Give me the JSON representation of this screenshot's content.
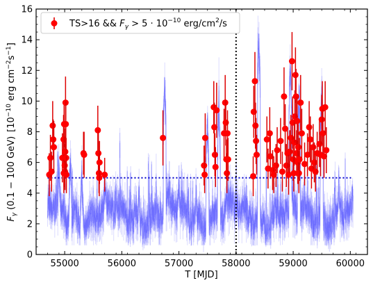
{
  "chart_data": {
    "type": "scatter",
    "xlabel": "T [MJD]",
    "ylabel": "F_γ (0.1 − 100 GeV) [10^{-10} erg cm^{-2}s^{-1}]",
    "ylabel_parts": {
      "main_left": "F",
      "main_sub": "γ",
      "main_range": " (0.1 − 100 GeV)",
      "unit_left": "[10",
      "unit_exp1": "−10",
      "unit_mid": " erg cm",
      "unit_exp2": "−2",
      "unit_s": "s",
      "unit_exp3": "−1",
      "unit_right": "]"
    },
    "xlim": [
      54500,
      60300
    ],
    "ylim": [
      0,
      16
    ],
    "xticks": [
      55000,
      56000,
      57000,
      58000,
      59000,
      60000
    ],
    "yticks": [
      0,
      2,
      4,
      6,
      8,
      10,
      12,
      14,
      16
    ],
    "grid": false,
    "legend": {
      "placement": "top-left",
      "entry": "TS>16 && F_γ > 5·10^{-10} erg/cm^2/s",
      "entry_parts": {
        "lead": "TS>16 && ",
        "f": "F",
        "f_sub": "γ",
        "gt": " > 5 · 10",
        "exp": "−10",
        "unit": " erg/cm",
        "unit_exp": "2",
        "unit_tail": "/s"
      }
    },
    "threshold": {
      "value": 5,
      "x_range": [
        54700,
        60050
      ],
      "color": "#0000cc",
      "style": "dotted"
    },
    "vertical_line": {
      "x": 58000,
      "color": "#000000",
      "style": "dotted"
    },
    "background_series": {
      "description_color": "#0000ff",
      "x_range": [
        54700,
        60050
      ],
      "typical_range": [
        1.5,
        4.5
      ],
      "peaks": [
        [
          54900,
          6.5
        ],
        [
          55100,
          7.2
        ],
        [
          55700,
          5.6
        ],
        [
          56750,
          12.0
        ],
        [
          57000,
          5.5
        ],
        [
          57500,
          9.5
        ],
        [
          57700,
          10.3
        ],
        [
          58400,
          14.5
        ],
        [
          58950,
          13.0
        ],
        [
          59100,
          10.7
        ],
        [
          59500,
          11.6
        ],
        [
          59800,
          5.8
        ],
        [
          55300,
          6.2
        ],
        [
          56300,
          5.2
        ],
        [
          57300,
          4.8
        ]
      ]
    },
    "series": [
      {
        "name": "TS>16 && F_γ > 5·10^{-10} erg/cm^2/s",
        "color": "#ff0000",
        "points": [
          [
            54730,
            5.2,
            1.4
          ],
          [
            54750,
            6.3,
            1.5
          ],
          [
            54770,
            5.4,
            1.3
          ],
          [
            54790,
            8.4,
            1.6
          ],
          [
            54800,
            7.5,
            1.3
          ],
          [
            54810,
            7.0,
            1.7
          ],
          [
            54960,
            6.3,
            1.6
          ],
          [
            54980,
            7.5,
            1.6
          ],
          [
            54985,
            5.3,
            1.3
          ],
          [
            54990,
            8.5,
            1.5
          ],
          [
            55000,
            5.8,
            1.4
          ],
          [
            55005,
            5.4,
            1.2
          ],
          [
            55010,
            6.7,
            1.5
          ],
          [
            55015,
            9.9,
            1.7
          ],
          [
            55020,
            8.5,
            1.5
          ],
          [
            55025,
            6.3,
            1.3
          ],
          [
            55030,
            5.2,
            1.2
          ],
          [
            55330,
            6.6,
            1.4
          ],
          [
            55340,
            6.5,
            1.5
          ],
          [
            55580,
            8.1,
            1.6
          ],
          [
            55590,
            6.6,
            1.5
          ],
          [
            55600,
            5.3,
            1.3
          ],
          [
            55605,
            5.0,
            1.2
          ],
          [
            55610,
            6.0,
            1.4
          ],
          [
            55700,
            5.2,
            1.1
          ],
          [
            56720,
            7.6,
            1.8
          ],
          [
            57440,
            5.8,
            1.3
          ],
          [
            57450,
            5.2,
            1.2
          ],
          [
            57460,
            7.6,
            1.6
          ],
          [
            57610,
            9.6,
            1.7
          ],
          [
            57620,
            8.3,
            1.6
          ],
          [
            57630,
            6.5,
            1.4
          ],
          [
            57640,
            5.7,
            1.3
          ],
          [
            57660,
            9.4,
            1.8
          ],
          [
            57790,
            7.9,
            1.6
          ],
          [
            57810,
            9.9,
            1.8
          ],
          [
            57820,
            8.6,
            1.5
          ],
          [
            57830,
            6.2,
            1.3
          ],
          [
            57840,
            5.3,
            1.3
          ],
          [
            57850,
            7.9,
            1.5
          ],
          [
            57860,
            6.2,
            1.4
          ],
          [
            58300,
            5.1,
            1.3
          ],
          [
            58310,
            9.3,
            1.7
          ],
          [
            58330,
            11.3,
            1.9
          ],
          [
            58340,
            8.4,
            1.5
          ],
          [
            58350,
            7.4,
            1.5
          ],
          [
            58360,
            6.5,
            1.3
          ],
          [
            58540,
            7.5,
            1.5
          ],
          [
            58560,
            5.6,
            1.3
          ],
          [
            58590,
            7.9,
            1.7
          ],
          [
            58600,
            6.4,
            1.4
          ],
          [
            58640,
            5.5,
            1.3
          ],
          [
            58660,
            5.2,
            1.2
          ],
          [
            58700,
            5.8,
            1.4
          ],
          [
            58720,
            6.8,
            1.5
          ],
          [
            58780,
            7.4,
            1.5
          ],
          [
            58810,
            5.4,
            1.3
          ],
          [
            58840,
            10.3,
            1.9
          ],
          [
            58860,
            8.2,
            1.6
          ],
          [
            58880,
            5.8,
            1.4
          ],
          [
            58900,
            6.6,
            1.5
          ],
          [
            58920,
            5.2,
            1.3
          ],
          [
            58940,
            6.7,
            1.4
          ],
          [
            58960,
            7.6,
            1.5
          ],
          [
            58980,
            12.6,
            1.9
          ],
          [
            58990,
            8.6,
            1.7
          ],
          [
            59000,
            6.2,
            1.4
          ],
          [
            59010,
            5.3,
            1.2
          ],
          [
            59020,
            7.3,
            1.5
          ],
          [
            59030,
            9.0,
            1.7
          ],
          [
            59040,
            11.7,
            1.8
          ],
          [
            59050,
            10.3,
            1.8
          ],
          [
            59060,
            6.6,
            1.5
          ],
          [
            59070,
            8.7,
            1.6
          ],
          [
            59080,
            6.0,
            1.4
          ],
          [
            59090,
            7.0,
            1.5
          ],
          [
            59100,
            5.3,
            1.3
          ],
          [
            59110,
            6.2,
            1.4
          ],
          [
            59130,
            9.9,
            1.8
          ],
          [
            59150,
            7.9,
            1.6
          ],
          [
            59200,
            5.9,
            1.4
          ],
          [
            59250,
            6.5,
            1.4
          ],
          [
            59280,
            8.3,
            1.7
          ],
          [
            59300,
            7.5,
            1.5
          ],
          [
            59320,
            5.6,
            1.3
          ],
          [
            59350,
            7.0,
            1.5
          ],
          [
            59370,
            6.0,
            1.3
          ],
          [
            59390,
            5.4,
            1.3
          ],
          [
            59420,
            6.6,
            1.4
          ],
          [
            59460,
            7.2,
            1.5
          ],
          [
            59480,
            6.5,
            1.4
          ],
          [
            59500,
            8.8,
            1.6
          ],
          [
            59510,
            9.5,
            1.8
          ],
          [
            59520,
            7.9,
            1.6
          ],
          [
            59540,
            6.4,
            1.4
          ],
          [
            59560,
            9.6,
            1.7
          ],
          [
            59580,
            6.8,
            1.5
          ]
        ]
      }
    ]
  }
}
